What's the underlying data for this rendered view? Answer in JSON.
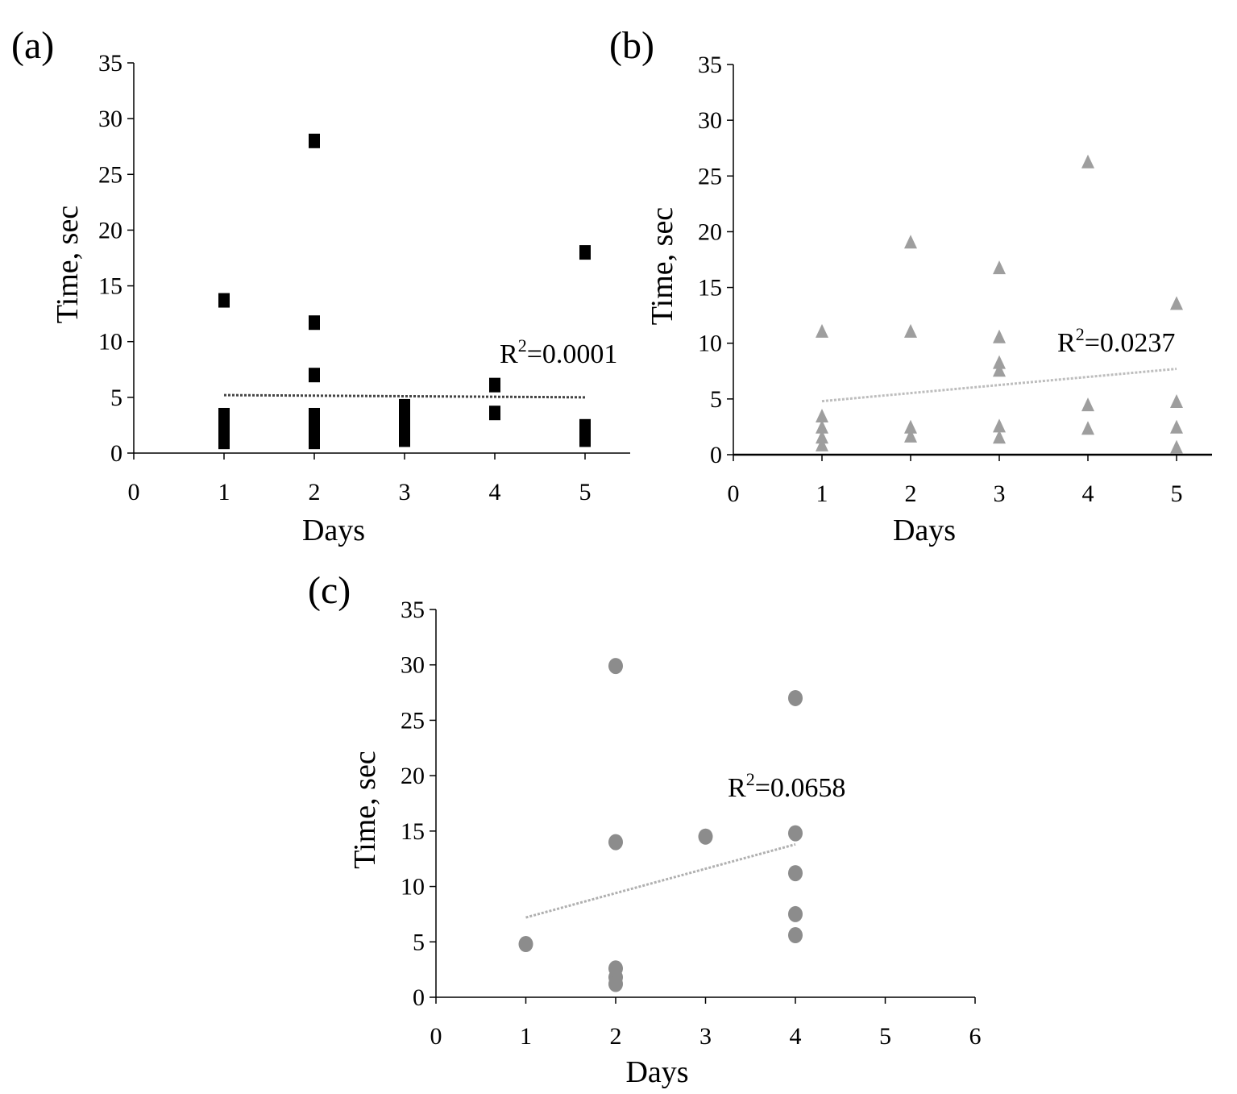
{
  "chart_data": [
    {
      "type": "scatter",
      "panel_label": "(a)",
      "xlabel": "Days",
      "ylabel": "Time, sec",
      "xlim": [
        0,
        5.5
      ],
      "ylim": [
        0,
        35
      ],
      "xticks": [
        0,
        1,
        2,
        3,
        4,
        5
      ],
      "yticks": [
        0,
        5,
        10,
        15,
        20,
        25,
        30,
        35
      ],
      "marker": "square",
      "color": "#000000",
      "points": [
        [
          1,
          13.7
        ],
        [
          1,
          3.4
        ],
        [
          1,
          2.8
        ],
        [
          1,
          2.2
        ],
        [
          1,
          1.6
        ],
        [
          1,
          1.0
        ],
        [
          2,
          28.0
        ],
        [
          2,
          11.7
        ],
        [
          2,
          7.0
        ],
        [
          2,
          3.4
        ],
        [
          2,
          2.8
        ],
        [
          2,
          2.2
        ],
        [
          2,
          1.6
        ],
        [
          2,
          1.0
        ],
        [
          3,
          4.2
        ],
        [
          3,
          3.6
        ],
        [
          3,
          3.0
        ],
        [
          3,
          2.4
        ],
        [
          3,
          1.8
        ],
        [
          3,
          1.2
        ],
        [
          4,
          6.1
        ],
        [
          4,
          3.6
        ],
        [
          5,
          18.0
        ],
        [
          5,
          2.4
        ],
        [
          5,
          1.8
        ],
        [
          5,
          1.2
        ]
      ],
      "trendline": {
        "x": [
          1,
          5
        ],
        "y": [
          5.2,
          5.0
        ],
        "color": "#444444"
      },
      "r2_prefix": "R",
      "r2_sup": "2",
      "r2_value": "=0.0001"
    },
    {
      "type": "scatter",
      "panel_label": "(b)",
      "xlabel": "Days",
      "ylabel": "Time, sec",
      "xlim": [
        0,
        5.4
      ],
      "ylim": [
        0,
        35
      ],
      "xticks": [
        0,
        1,
        2,
        3,
        4,
        5
      ],
      "yticks": [
        0,
        5,
        10,
        15,
        20,
        25,
        30,
        35
      ],
      "marker": "triangle",
      "color": "#9e9e9e",
      "points": [
        [
          1,
          11.0
        ],
        [
          1,
          3.4
        ],
        [
          1,
          2.4
        ],
        [
          1,
          1.5
        ],
        [
          1,
          0.8
        ],
        [
          2,
          19.0
        ],
        [
          2,
          11.0
        ],
        [
          2,
          2.4
        ],
        [
          2,
          1.6
        ],
        [
          3,
          16.7
        ],
        [
          3,
          10.5
        ],
        [
          3,
          8.2
        ],
        [
          3,
          7.5
        ],
        [
          3,
          2.5
        ],
        [
          3,
          1.5
        ],
        [
          4,
          26.2
        ],
        [
          4,
          4.4
        ],
        [
          4,
          2.3
        ],
        [
          5,
          13.5
        ],
        [
          5,
          4.7
        ],
        [
          5,
          2.4
        ],
        [
          5,
          0.6
        ]
      ],
      "trendline": {
        "x": [
          1,
          5
        ],
        "y": [
          4.8,
          7.7
        ],
        "color": "#bdbdbd"
      },
      "r2_prefix": "R",
      "r2_sup": "2",
      "r2_value": "=0.0237"
    },
    {
      "type": "scatter",
      "panel_label": "(c)",
      "xlabel": "Days",
      "ylabel": "Time, sec",
      "xlim": [
        0,
        6
      ],
      "ylim": [
        0,
        35
      ],
      "xticks": [
        0,
        1,
        2,
        3,
        4,
        5,
        6
      ],
      "yticks": [
        0,
        5,
        10,
        15,
        20,
        25,
        30,
        35
      ],
      "marker": "circle",
      "color": "#8c8c8c",
      "points": [
        [
          1,
          4.8
        ],
        [
          2,
          29.9
        ],
        [
          2,
          14.0
        ],
        [
          2,
          2.6
        ],
        [
          2,
          1.8
        ],
        [
          2,
          1.2
        ],
        [
          3,
          14.5
        ],
        [
          4,
          27.0
        ],
        [
          4,
          14.8
        ],
        [
          4,
          11.2
        ],
        [
          4,
          7.5
        ],
        [
          4,
          5.6
        ]
      ],
      "trendline": {
        "x": [
          1,
          4
        ],
        "y": [
          7.2,
          13.8
        ],
        "color": "#b0b0b0"
      },
      "r2_prefix": "R",
      "r2_sup": "2",
      "r2_value": "=0.0658"
    }
  ]
}
